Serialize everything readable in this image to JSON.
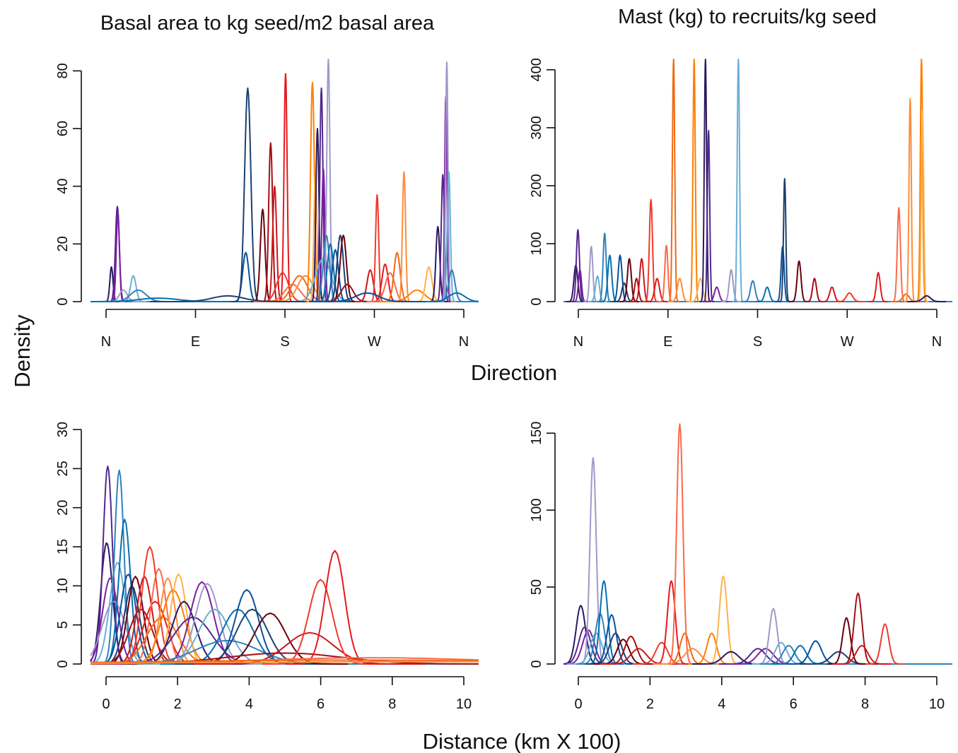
{
  "figure": {
    "ylabel": "Density",
    "xlabel_top": "Direction",
    "xlabel_bottom": "Distance (km X 100)"
  },
  "palette": [
    "#2c1a5e",
    "#54278f",
    "#7b1fa2",
    "#9e9ac8",
    "#6baed6",
    "#3182bd",
    "#0570b0",
    "#08519c",
    "#1d3f6e",
    "#67000d",
    "#a50f15",
    "#cb181d",
    "#ef3b2c",
    "#e31a1c",
    "#fb6a4a",
    "#f16913",
    "#fd8d3c",
    "#ff7f00",
    "#feb24c"
  ],
  "chart_data": [
    {
      "type": "line",
      "title": "Basal area to kg seed/m2 basal area",
      "xlabel": "Direction",
      "ylabel": "Density",
      "x_tick_labels": [
        "N",
        "E",
        "S",
        "W",
        "N"
      ],
      "x_tick_values": [
        0,
        90,
        180,
        270,
        360
      ],
      "xlim": [
        -18,
        372
      ],
      "y_ticks": [
        "0",
        "20",
        "40",
        "60",
        "80"
      ],
      "ylim": [
        0,
        84
      ],
      "grid": false,
      "series_peaks": [
        [
          3,
          12,
          0.004
        ],
        [
          9,
          33,
          0.005
        ],
        [
          9.5,
          31,
          0.004
        ],
        [
          15,
          4,
          0.01
        ],
        [
          25,
          9,
          0.007
        ],
        [
          30,
          4,
          0.02
        ],
        [
          50,
          1.2,
          0.05
        ],
        [
          138,
          17,
          0.008
        ],
        [
          140,
          74,
          0.008
        ],
        [
          155,
          32,
          0.006
        ],
        [
          163,
          55,
          0.005
        ],
        [
          167,
          40,
          0.005
        ],
        [
          175,
          10,
          0.015
        ],
        [
          178,
          79,
          0.004
        ],
        [
          185,
          6,
          0.02
        ],
        [
          192,
          9,
          0.02
        ],
        [
          198,
          9,
          0.02
        ],
        [
          205,
          76,
          0.005
        ],
        [
          208,
          44,
          0.004
        ],
        [
          210,
          60,
          0.004
        ],
        [
          214,
          74,
          0.004
        ],
        [
          216,
          46,
          0.004
        ],
        [
          221,
          84,
          0.004
        ],
        [
          216,
          15,
          0.02
        ],
        [
          219,
          23,
          0.008
        ],
        [
          223,
          20,
          0.008
        ],
        [
          228,
          18,
          0.008
        ],
        [
          233,
          23,
          0.008
        ],
        [
          236,
          23,
          0.008
        ],
        [
          240,
          6,
          0.015
        ],
        [
          263,
          11,
          0.008
        ],
        [
          270,
          37,
          0.004
        ],
        [
          278,
          13,
          0.008
        ],
        [
          283,
          10,
          0.012
        ],
        [
          290,
          17,
          0.008
        ],
        [
          297,
          45,
          0.004
        ],
        [
          310,
          4,
          0.02
        ],
        [
          322,
          12,
          0.008
        ],
        [
          331,
          26,
          0.005
        ],
        [
          336,
          44,
          0.004
        ],
        [
          339,
          71,
          0.003
        ],
        [
          340,
          83,
          0.003
        ],
        [
          342,
          45,
          0.004
        ],
        [
          345,
          11,
          0.008
        ],
        [
          350,
          3,
          0.02
        ],
        [
          260,
          3,
          0.03
        ],
        [
          120,
          2,
          0.04
        ]
      ]
    },
    {
      "type": "line",
      "title": "Mast (kg) to recruits/kg seed",
      "xlabel": "Direction",
      "ylabel": "Density",
      "x_tick_labels": [
        "N",
        "E",
        "S",
        "W",
        "N"
      ],
      "x_tick_values": [
        0,
        90,
        180,
        270,
        360
      ],
      "xlim": [
        -3,
        375
      ],
      "y_ticks": [
        "0",
        "100",
        "200",
        "300",
        "400"
      ],
      "ylim": [
        0,
        418
      ],
      "grid": false,
      "series_peaks": [
        [
          9,
          63,
          0.005
        ],
        [
          11,
          124,
          0.004
        ],
        [
          13,
          55,
          0.004
        ],
        [
          24,
          95,
          0.004
        ],
        [
          30,
          44,
          0.005
        ],
        [
          37,
          118,
          0.004
        ],
        [
          42,
          80,
          0.005
        ],
        [
          52,
          80,
          0.005
        ],
        [
          56,
          32,
          0.006
        ],
        [
          61,
          74,
          0.005
        ],
        [
          68,
          40,
          0.005
        ],
        [
          73,
          74,
          0.005
        ],
        [
          82,
          176,
          0.004
        ],
        [
          88,
          40,
          0.006
        ],
        [
          97,
          97,
          0.004
        ],
        [
          104,
          418,
          0.003
        ],
        [
          110,
          40,
          0.006
        ],
        [
          124,
          418,
          0.003
        ],
        [
          130,
          40,
          0.006
        ],
        [
          135,
          418,
          0.003
        ],
        [
          138,
          295,
          0.003
        ],
        [
          146,
          25,
          0.006
        ],
        [
          160,
          55,
          0.005
        ],
        [
          167,
          418,
          0.003
        ],
        [
          181,
          36,
          0.006
        ],
        [
          195,
          25,
          0.006
        ],
        [
          210,
          95,
          0.004
        ],
        [
          212,
          212,
          0.003
        ],
        [
          226,
          70,
          0.005
        ],
        [
          241,
          40,
          0.005
        ],
        [
          258,
          25,
          0.006
        ],
        [
          275,
          15,
          0.008
        ],
        [
          303,
          50,
          0.005
        ],
        [
          323,
          162,
          0.004
        ],
        [
          330,
          13,
          0.008
        ],
        [
          334,
          350,
          0.003
        ],
        [
          345,
          418,
          0.003
        ],
        [
          346,
          330,
          0.003
        ],
        [
          350,
          10,
          0.01
        ]
      ]
    },
    {
      "type": "line",
      "title": "",
      "xlabel": "Distance (km X 100)",
      "ylabel": "Density",
      "x_ticks": [
        "0",
        "2",
        "4",
        "6",
        "8",
        "10"
      ],
      "xlim": [
        -0.4,
        10.4
      ],
      "y_ticks": [
        "0",
        "5",
        "10",
        "15",
        "20",
        "25",
        "30"
      ],
      "ylim": [
        0,
        31
      ],
      "grid": false,
      "series_peaks": [
        [
          0.05,
          15.5,
          0.015
        ],
        [
          0.08,
          25.3,
          0.012
        ],
        [
          0.15,
          11,
          0.02
        ],
        [
          0.25,
          8,
          0.03
        ],
        [
          0.35,
          13,
          0.02
        ],
        [
          0.4,
          24.8,
          0.012
        ],
        [
          0.55,
          18.5,
          0.015
        ],
        [
          0.65,
          11.5,
          0.02
        ],
        [
          0.75,
          10,
          0.02
        ],
        [
          0.85,
          11.2,
          0.02
        ],
        [
          1.0,
          7,
          0.03
        ],
        [
          1.1,
          11.2,
          0.02
        ],
        [
          1.25,
          15,
          0.02
        ],
        [
          1.4,
          8,
          0.03
        ],
        [
          1.5,
          12.2,
          0.02
        ],
        [
          1.6,
          6,
          0.04
        ],
        [
          1.75,
          11,
          0.02
        ],
        [
          1.9,
          9.5,
          0.03
        ],
        [
          2.05,
          11.5,
          0.02
        ],
        [
          2.2,
          8,
          0.03
        ],
        [
          2.45,
          6,
          0.05
        ],
        [
          2.7,
          10.5,
          0.03
        ],
        [
          2.85,
          10.3,
          0.03
        ],
        [
          3.05,
          7,
          0.04
        ],
        [
          3.4,
          3,
          0.08
        ],
        [
          3.7,
          7,
          0.04
        ],
        [
          3.95,
          9.5,
          0.03
        ],
        [
          4.1,
          7,
          0.04
        ],
        [
          4.6,
          6.5,
          0.04
        ],
        [
          5.0,
          1.4,
          0.15
        ],
        [
          5.7,
          4,
          0.06
        ],
        [
          6.0,
          10.8,
          0.03
        ],
        [
          6.4,
          14.5,
          0.025
        ],
        [
          7.4,
          0.8,
          0.3
        ],
        [
          6.8,
          0.5,
          0.5
        ],
        [
          9.5,
          0.3,
          0.6
        ]
      ]
    },
    {
      "type": "line",
      "title": "",
      "xlabel": "Distance (km X 100)",
      "ylabel": "Density",
      "x_ticks": [
        "0",
        "2",
        "4",
        "6",
        "8",
        "10"
      ],
      "xlim": [
        -0.05,
        10.05
      ],
      "y_ticks": [
        "0",
        "50",
        "100",
        "150"
      ],
      "ylim": [
        0,
        157
      ],
      "grid": false,
      "series_peaks": [
        [
          0.4,
          38,
          0.012
        ],
        [
          0.5,
          24,
          0.015
        ],
        [
          0.6,
          22,
          0.015
        ],
        [
          0.72,
          134,
          0.008
        ],
        [
          0.8,
          20,
          0.015
        ],
        [
          0.9,
          33,
          0.012
        ],
        [
          1.0,
          54,
          0.01
        ],
        [
          1.2,
          32,
          0.012
        ],
        [
          1.3,
          20,
          0.015
        ],
        [
          1.5,
          16,
          0.015
        ],
        [
          1.7,
          18,
          0.015
        ],
        [
          1.9,
          10,
          0.02
        ],
        [
          2.5,
          14,
          0.015
        ],
        [
          2.75,
          54,
          0.01
        ],
        [
          2.97,
          156,
          0.008
        ],
        [
          3.1,
          20,
          0.012
        ],
        [
          3.3,
          10,
          0.02
        ],
        [
          3.8,
          20,
          0.012
        ],
        [
          4.1,
          57,
          0.01
        ],
        [
          4.3,
          8,
          0.02
        ],
        [
          5.0,
          10,
          0.02
        ],
        [
          5.2,
          10,
          0.02
        ],
        [
          5.4,
          36,
          0.01
        ],
        [
          5.6,
          14,
          0.015
        ],
        [
          5.8,
          12,
          0.015
        ],
        [
          6.1,
          12,
          0.015
        ],
        [
          6.5,
          15,
          0.015
        ],
        [
          7.1,
          8,
          0.02
        ],
        [
          7.3,
          30,
          0.01
        ],
        [
          7.6,
          46,
          0.01
        ],
        [
          7.7,
          12,
          0.015
        ],
        [
          8.3,
          26,
          0.01
        ]
      ]
    }
  ]
}
